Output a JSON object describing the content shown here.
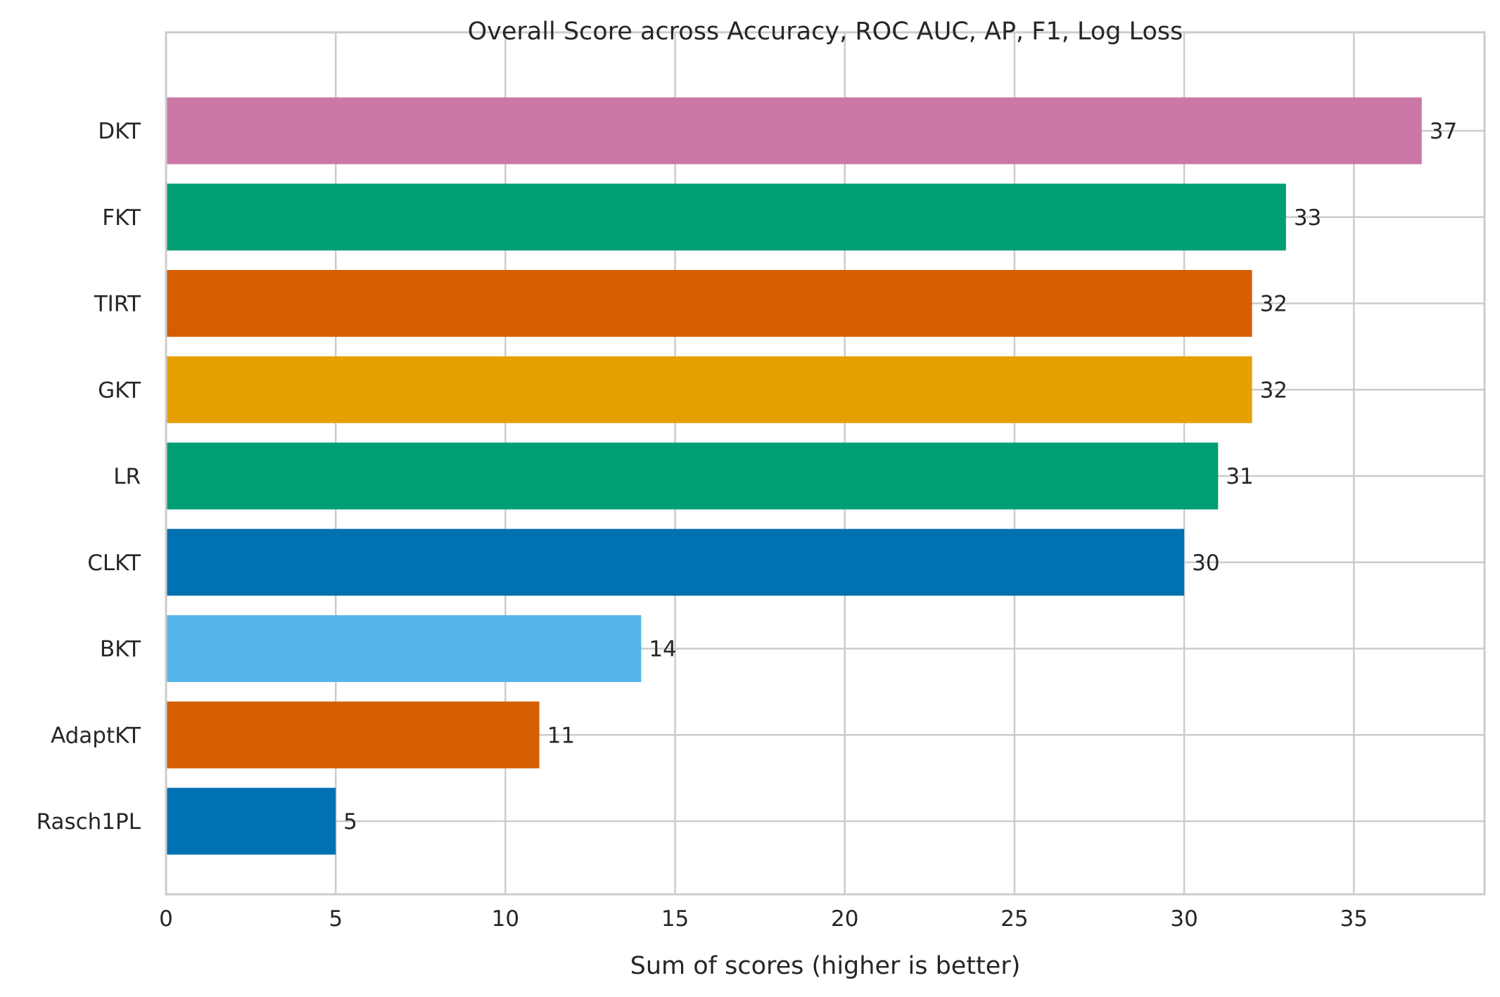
{
  "chart_data": {
    "type": "bar",
    "orientation": "horizontal",
    "title": "Overall Score across Accuracy, ROC AUC, AP, F1, Log Loss",
    "xlabel": "Sum of scores (higher is better)",
    "ylabel": "",
    "xlim": [
      0,
      38.85
    ],
    "xticks": [
      0,
      5,
      10,
      15,
      20,
      25,
      30,
      35
    ],
    "grid": true,
    "legend": "none",
    "categories": [
      "DKT",
      "FKT",
      "TIRT",
      "GKT",
      "LR",
      "CLKT",
      "BKT",
      "AdaptKT",
      "Rasch1PL"
    ],
    "values": [
      37,
      33,
      32,
      32,
      31,
      30,
      14,
      11,
      5
    ],
    "colors": [
      "#cc78a7",
      "#009e73",
      "#d55e00",
      "#e69f00",
      "#009e73",
      "#0072b2",
      "#56b4e9",
      "#d55e00",
      "#0072b2"
    ]
  }
}
